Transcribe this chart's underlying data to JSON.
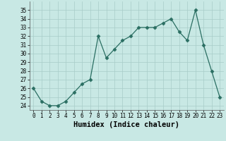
{
  "x": [
    0,
    1,
    2,
    3,
    4,
    5,
    6,
    7,
    8,
    9,
    10,
    11,
    12,
    13,
    14,
    15,
    16,
    17,
    18,
    19,
    20,
    21,
    22,
    23
  ],
  "y": [
    26.0,
    24.5,
    24.0,
    24.0,
    24.5,
    25.5,
    26.5,
    27.0,
    32.0,
    29.5,
    30.5,
    31.5,
    32.0,
    33.0,
    33.0,
    33.0,
    33.5,
    34.0,
    32.5,
    31.5,
    35.0,
    31.0,
    28.0,
    25.0
  ],
  "xlim": [
    -0.5,
    23.5
  ],
  "ylim": [
    23.5,
    36.0
  ],
  "yticks": [
    24,
    25,
    26,
    27,
    28,
    29,
    30,
    31,
    32,
    33,
    34,
    35
  ],
  "xticks": [
    0,
    1,
    2,
    3,
    4,
    5,
    6,
    7,
    8,
    9,
    10,
    11,
    12,
    13,
    14,
    15,
    16,
    17,
    18,
    19,
    20,
    21,
    22,
    23
  ],
  "xlabel": "Humidex (Indice chaleur)",
  "line_color": "#2a6e62",
  "marker": "D",
  "marker_size": 2.5,
  "bg_color": "#c8e8e4",
  "grid_color": "#a8ccc8",
  "tick_fontsize": 5.5,
  "xlabel_fontsize": 7.5
}
